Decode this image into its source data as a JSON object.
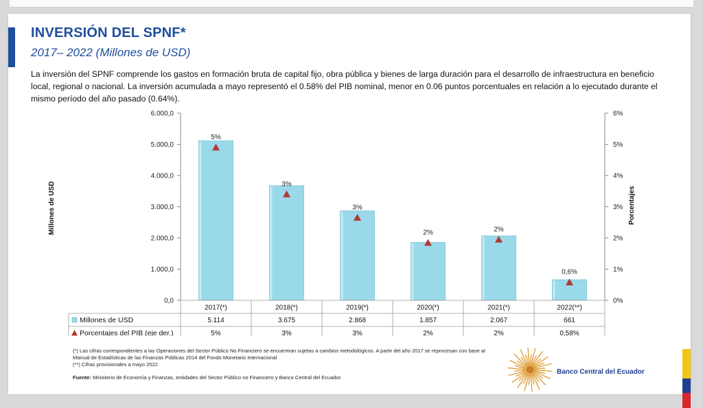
{
  "header": {
    "title": "INVERSIÓN DEL SPNF*",
    "subtitle": "2017– 2022 (Millones de USD)"
  },
  "description": "La inversión del SPNF comprende los gastos en formación bruta de capital fijo, obra pública y bienes de larga duración para el desarrollo de infraestructura en beneficio local, regional o nacional. La inversión acumulada a mayo representó el 0.58% del PIB nominal, menor en 0.06 puntos porcentuales en relación a lo ejecutado durante el mismo período del año pasado (0.64%).",
  "chart_data": {
    "type": "bar",
    "categories": [
      "2017(*)",
      "2018(*)",
      "2019(*)",
      "2020(*)",
      "2021(*)",
      "2022(**)"
    ],
    "series": [
      {
        "name": "Millones de USD",
        "type": "bar",
        "axis": "left",
        "values": [
          5114,
          3675,
          2868,
          1857,
          2067,
          661
        ],
        "table_labels": [
          "5.114",
          "3.675",
          "2.868",
          "1.857",
          "2.067",
          "661"
        ],
        "color": "#9ad9ea"
      },
      {
        "name": "Porcentajes del PIB (eje der.)",
        "type": "scatter",
        "axis": "right",
        "values": [
          4.9,
          3.4,
          2.65,
          1.85,
          1.95,
          0.58
        ],
        "point_labels": [
          "5%",
          "3%",
          "3%",
          "2%",
          "2%",
          "0,6%"
        ],
        "table_labels": [
          "5%",
          "3%",
          "3%",
          "2%",
          "2%",
          "0,58%"
        ],
        "color": "#b03a32"
      }
    ],
    "ylabel": "Millones de USD",
    "ylabel_right": "Porcentajes",
    "ylim": [
      0,
      6000
    ],
    "ylim_right": [
      0,
      6
    ],
    "yticks": [
      "0,0",
      "1.000,0",
      "2.000,0",
      "3.000,0",
      "4.000,0",
      "5.000,0",
      "6.000,0"
    ],
    "yticks_right": [
      "0%",
      "1%",
      "2%",
      "3%",
      "4%",
      "5%",
      "6%"
    ],
    "data_table": true,
    "grid": false
  },
  "footnotes": {
    "note1": "(*) Las cifras correspondientes a las Operaciones del Sector Público No Financiero se encuentran sujetas a cambios metodológicos.  A partir del año 2017 se reprocesan con base al Manual de Estadísticas de las Finanzas Públicas 2014 del Fondo Monetario Internacional",
    "note2": "(**) Cifras provisionales a mayo 2022",
    "source_label": "Fuente:",
    "source_text": " Ministerio de Economía y Finanzas, entidades del Sector Público no Financiero y Banco Central del Ecuador."
  },
  "branding": {
    "bank_name": "Banco Central del Ecuador",
    "flag_colors": [
      "#f4c418",
      "#1f3f8f",
      "#d8262b"
    ],
    "brand_color": "#1f4e9e"
  }
}
